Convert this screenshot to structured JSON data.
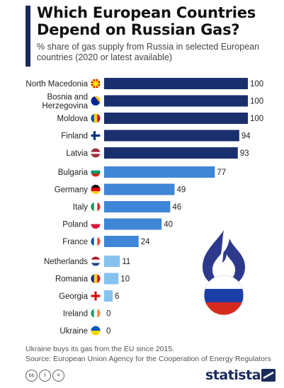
{
  "header": {
    "title": "Which European Countries Depend on Russian Gas?",
    "subtitle": "% share of gas supply from Russia in selected European countries (2020 or latest available)"
  },
  "footer": {
    "note": "Ukraine buys its gas from the EU since 2015.",
    "source": "Source: European Union Agency for the Cooperation of Energy Regulators",
    "cc_icons": [
      "cc",
      "i",
      "="
    ],
    "brand": "statista"
  },
  "colors": {
    "dark_blue": "#1a2f6e",
    "mid_blue": "#3f86d6",
    "light_blue": "#86c2f0",
    "brand": "#1a2b5c"
  },
  "chart_data": {
    "type": "bar",
    "orientation": "horizontal",
    "xlim": [
      0,
      100
    ],
    "groups": [
      {
        "color": "#1a2f6e",
        "items": [
          {
            "label": "North Macedonia",
            "value": 100,
            "flag": "north-macedonia-flag"
          },
          {
            "label": "Bosnia and Herzegovina",
            "value": 100,
            "flag": "bosnia-flag"
          },
          {
            "label": "Moldova",
            "value": 100,
            "flag": "moldova-flag"
          },
          {
            "label": "Finland",
            "value": 94,
            "flag": "finland-flag"
          },
          {
            "label": "Latvia",
            "value": 93,
            "flag": "latvia-flag"
          }
        ]
      },
      {
        "color": "#3f86d6",
        "items": [
          {
            "label": "Bulgaria",
            "value": 77,
            "flag": "bulgaria-flag"
          },
          {
            "label": "Germany",
            "value": 49,
            "flag": "germany-flag"
          },
          {
            "label": "Italy",
            "value": 46,
            "flag": "italy-flag"
          },
          {
            "label": "Poland",
            "value": 40,
            "flag": "poland-flag"
          },
          {
            "label": "France",
            "value": 24,
            "flag": "france-flag"
          }
        ]
      },
      {
        "color": "#86c2f0",
        "items": [
          {
            "label": "Netherlands",
            "value": 11,
            "flag": "netherlands-flag"
          },
          {
            "label": "Romania",
            "value": 10,
            "flag": "romania-flag"
          },
          {
            "label": "Georgia",
            "value": 6,
            "flag": "georgia-flag"
          },
          {
            "label": "Ireland",
            "value": 0,
            "flag": "ireland-flag"
          },
          {
            "label": "Ukraine",
            "value": 0,
            "flag": "ukraine-flag"
          }
        ]
      }
    ],
    "illustration": "gas-flame-russia-flag-icon"
  }
}
